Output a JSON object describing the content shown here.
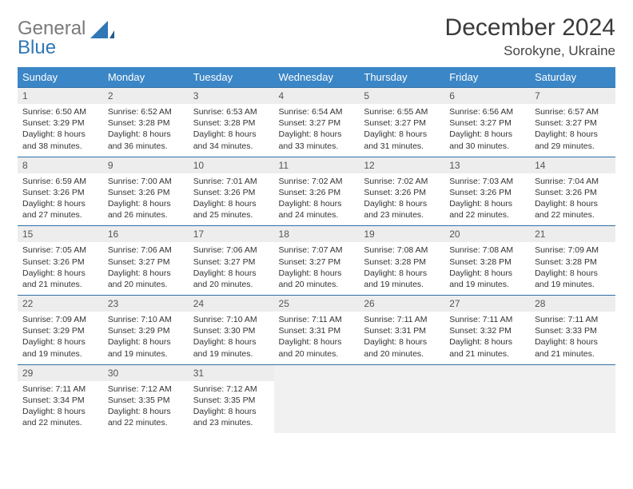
{
  "logo": {
    "text_gray": "General",
    "text_blue": "Blue"
  },
  "title": "December 2024",
  "location": "Sorokyne, Ukraine",
  "colors": {
    "header_bg": "#3b86c6",
    "header_text": "#ffffff",
    "daynum_bg": "#ededed",
    "border": "#2f6fa6",
    "empty_bg": "#f1f1f1",
    "logo_gray": "#7a7a7a",
    "logo_blue": "#2f77b5"
  },
  "weekdays": [
    "Sunday",
    "Monday",
    "Tuesday",
    "Wednesday",
    "Thursday",
    "Friday",
    "Saturday"
  ],
  "weeks": [
    [
      {
        "n": "1",
        "sr": "Sunrise: 6:50 AM",
        "ss": "Sunset: 3:29 PM",
        "d1": "Daylight: 8 hours",
        "d2": "and 38 minutes."
      },
      {
        "n": "2",
        "sr": "Sunrise: 6:52 AM",
        "ss": "Sunset: 3:28 PM",
        "d1": "Daylight: 8 hours",
        "d2": "and 36 minutes."
      },
      {
        "n": "3",
        "sr": "Sunrise: 6:53 AM",
        "ss": "Sunset: 3:28 PM",
        "d1": "Daylight: 8 hours",
        "d2": "and 34 minutes."
      },
      {
        "n": "4",
        "sr": "Sunrise: 6:54 AM",
        "ss": "Sunset: 3:27 PM",
        "d1": "Daylight: 8 hours",
        "d2": "and 33 minutes."
      },
      {
        "n": "5",
        "sr": "Sunrise: 6:55 AM",
        "ss": "Sunset: 3:27 PM",
        "d1": "Daylight: 8 hours",
        "d2": "and 31 minutes."
      },
      {
        "n": "6",
        "sr": "Sunrise: 6:56 AM",
        "ss": "Sunset: 3:27 PM",
        "d1": "Daylight: 8 hours",
        "d2": "and 30 minutes."
      },
      {
        "n": "7",
        "sr": "Sunrise: 6:57 AM",
        "ss": "Sunset: 3:27 PM",
        "d1": "Daylight: 8 hours",
        "d2": "and 29 minutes."
      }
    ],
    [
      {
        "n": "8",
        "sr": "Sunrise: 6:59 AM",
        "ss": "Sunset: 3:26 PM",
        "d1": "Daylight: 8 hours",
        "d2": "and 27 minutes."
      },
      {
        "n": "9",
        "sr": "Sunrise: 7:00 AM",
        "ss": "Sunset: 3:26 PM",
        "d1": "Daylight: 8 hours",
        "d2": "and 26 minutes."
      },
      {
        "n": "10",
        "sr": "Sunrise: 7:01 AM",
        "ss": "Sunset: 3:26 PM",
        "d1": "Daylight: 8 hours",
        "d2": "and 25 minutes."
      },
      {
        "n": "11",
        "sr": "Sunrise: 7:02 AM",
        "ss": "Sunset: 3:26 PM",
        "d1": "Daylight: 8 hours",
        "d2": "and 24 minutes."
      },
      {
        "n": "12",
        "sr": "Sunrise: 7:02 AM",
        "ss": "Sunset: 3:26 PM",
        "d1": "Daylight: 8 hours",
        "d2": "and 23 minutes."
      },
      {
        "n": "13",
        "sr": "Sunrise: 7:03 AM",
        "ss": "Sunset: 3:26 PM",
        "d1": "Daylight: 8 hours",
        "d2": "and 22 minutes."
      },
      {
        "n": "14",
        "sr": "Sunrise: 7:04 AM",
        "ss": "Sunset: 3:26 PM",
        "d1": "Daylight: 8 hours",
        "d2": "and 22 minutes."
      }
    ],
    [
      {
        "n": "15",
        "sr": "Sunrise: 7:05 AM",
        "ss": "Sunset: 3:26 PM",
        "d1": "Daylight: 8 hours",
        "d2": "and 21 minutes."
      },
      {
        "n": "16",
        "sr": "Sunrise: 7:06 AM",
        "ss": "Sunset: 3:27 PM",
        "d1": "Daylight: 8 hours",
        "d2": "and 20 minutes."
      },
      {
        "n": "17",
        "sr": "Sunrise: 7:06 AM",
        "ss": "Sunset: 3:27 PM",
        "d1": "Daylight: 8 hours",
        "d2": "and 20 minutes."
      },
      {
        "n": "18",
        "sr": "Sunrise: 7:07 AM",
        "ss": "Sunset: 3:27 PM",
        "d1": "Daylight: 8 hours",
        "d2": "and 20 minutes."
      },
      {
        "n": "19",
        "sr": "Sunrise: 7:08 AM",
        "ss": "Sunset: 3:28 PM",
        "d1": "Daylight: 8 hours",
        "d2": "and 19 minutes."
      },
      {
        "n": "20",
        "sr": "Sunrise: 7:08 AM",
        "ss": "Sunset: 3:28 PM",
        "d1": "Daylight: 8 hours",
        "d2": "and 19 minutes."
      },
      {
        "n": "21",
        "sr": "Sunrise: 7:09 AM",
        "ss": "Sunset: 3:28 PM",
        "d1": "Daylight: 8 hours",
        "d2": "and 19 minutes."
      }
    ],
    [
      {
        "n": "22",
        "sr": "Sunrise: 7:09 AM",
        "ss": "Sunset: 3:29 PM",
        "d1": "Daylight: 8 hours",
        "d2": "and 19 minutes."
      },
      {
        "n": "23",
        "sr": "Sunrise: 7:10 AM",
        "ss": "Sunset: 3:29 PM",
        "d1": "Daylight: 8 hours",
        "d2": "and 19 minutes."
      },
      {
        "n": "24",
        "sr": "Sunrise: 7:10 AM",
        "ss": "Sunset: 3:30 PM",
        "d1": "Daylight: 8 hours",
        "d2": "and 19 minutes."
      },
      {
        "n": "25",
        "sr": "Sunrise: 7:11 AM",
        "ss": "Sunset: 3:31 PM",
        "d1": "Daylight: 8 hours",
        "d2": "and 20 minutes."
      },
      {
        "n": "26",
        "sr": "Sunrise: 7:11 AM",
        "ss": "Sunset: 3:31 PM",
        "d1": "Daylight: 8 hours",
        "d2": "and 20 minutes."
      },
      {
        "n": "27",
        "sr": "Sunrise: 7:11 AM",
        "ss": "Sunset: 3:32 PM",
        "d1": "Daylight: 8 hours",
        "d2": "and 21 minutes."
      },
      {
        "n": "28",
        "sr": "Sunrise: 7:11 AM",
        "ss": "Sunset: 3:33 PM",
        "d1": "Daylight: 8 hours",
        "d2": "and 21 minutes."
      }
    ],
    [
      {
        "n": "29",
        "sr": "Sunrise: 7:11 AM",
        "ss": "Sunset: 3:34 PM",
        "d1": "Daylight: 8 hours",
        "d2": "and 22 minutes."
      },
      {
        "n": "30",
        "sr": "Sunrise: 7:12 AM",
        "ss": "Sunset: 3:35 PM",
        "d1": "Daylight: 8 hours",
        "d2": "and 22 minutes."
      },
      {
        "n": "31",
        "sr": "Sunrise: 7:12 AM",
        "ss": "Sunset: 3:35 PM",
        "d1": "Daylight: 8 hours",
        "d2": "and 23 minutes."
      },
      null,
      null,
      null,
      null
    ]
  ]
}
